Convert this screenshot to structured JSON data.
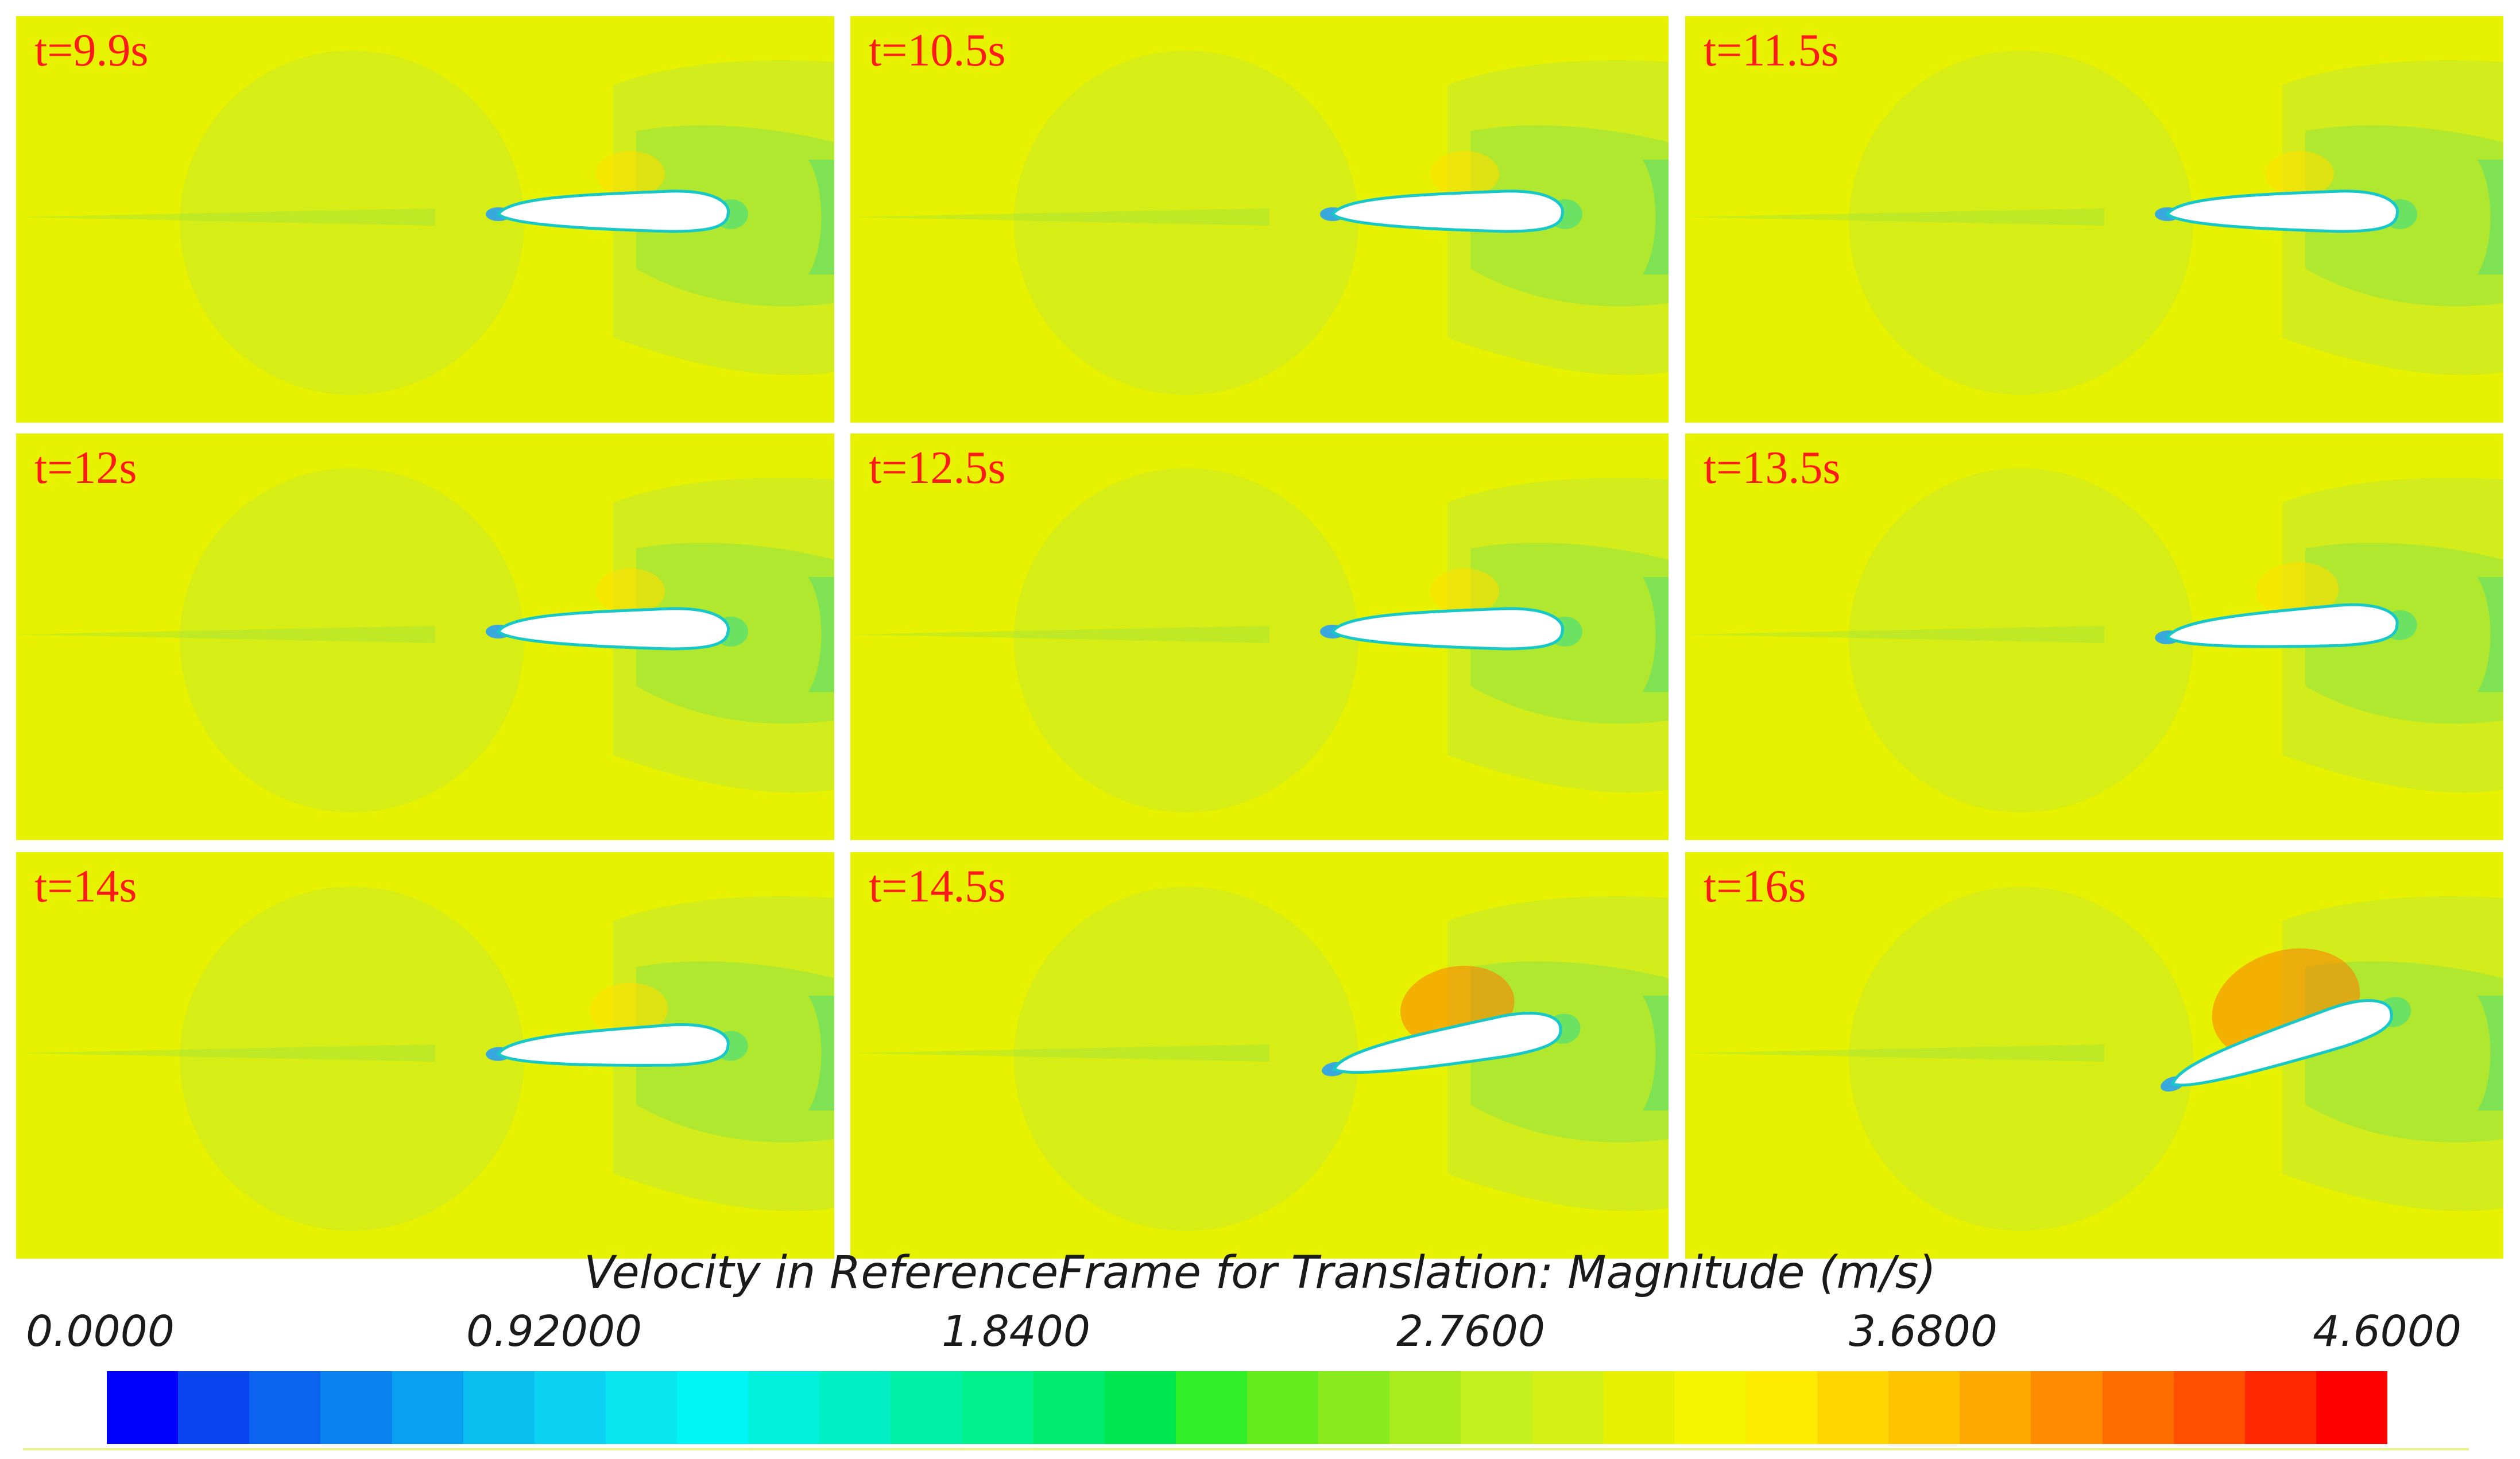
{
  "panels": [
    {
      "label": "t=9.9s",
      "aoa": 0
    },
    {
      "label": "t=10.5s",
      "aoa": 0
    },
    {
      "label": "t=11.5s",
      "aoa": 0
    },
    {
      "label": "t=12s",
      "aoa": 0
    },
    {
      "label": "t=12.5s",
      "aoa": 0
    },
    {
      "label": "t=13.5s",
      "aoa": 3
    },
    {
      "label": "t=14s",
      "aoa": 2
    },
    {
      "label": "t=14.5s",
      "aoa": 10
    },
    {
      "label": "t=16s",
      "aoa": 18
    }
  ],
  "legend": {
    "title": "Velocity in ReferenceFrame for Translation: Magnitude (m/s)",
    "ticks": [
      "0.0000",
      "0.92000",
      "1.8400",
      "2.7600",
      "3.6800",
      "4.6000"
    ],
    "min": 0,
    "max": 4.6,
    "colors": [
      "#0000ff",
      "#0a46f0",
      "#0a64f0",
      "#0a82f0",
      "#0aa0f0",
      "#0abef0",
      "#0ad2f0",
      "#0ae6f0",
      "#00f5f5",
      "#00f0dc",
      "#00f0c3",
      "#00f0a5",
      "#00f08c",
      "#00eb6e",
      "#00e650",
      "#32f028",
      "#64eb1e",
      "#8ceb1e",
      "#aaeb1e",
      "#c3f01e",
      "#d2f014",
      "#e6f000",
      "#f5f500",
      "#ffeb00",
      "#ffd700",
      "#ffc300",
      "#ffaa00",
      "#ff8c00",
      "#ff6e00",
      "#ff5000",
      "#ff2800",
      "#ff0000"
    ]
  },
  "colors": {
    "background": "#e6f200",
    "mid_field": "#c9ea28",
    "wake": "#a8e634",
    "near_wake": "#5fe06a",
    "leading_edge": "#1d9bff",
    "high_speed": "#ff7a00",
    "label": "#ff1a1a"
  }
}
